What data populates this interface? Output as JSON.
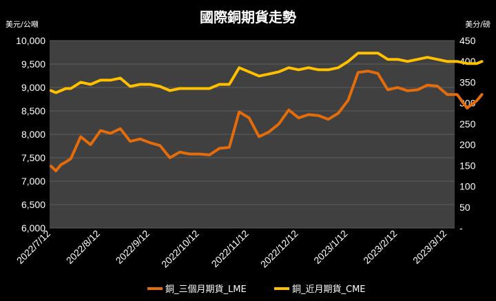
{
  "chart_data": {
    "type": "line",
    "title": "國際銅期貨走勢",
    "left_unit": "美元/公噸",
    "right_unit": "美分/磅",
    "ylim_left": [
      6000,
      10000
    ],
    "ylim_right": [
      0,
      450
    ],
    "yticks_left": [
      "6,000",
      "6,500",
      "7,000",
      "7,500",
      "8,000",
      "8,500",
      "9,000",
      "9,500",
      "10,000"
    ],
    "yticks_right": [
      "-",
      "50",
      "100",
      "150",
      "200",
      "250",
      "300",
      "350",
      "400",
      "450"
    ],
    "x_tick_labels": [
      "2022/7/12",
      "2022/8/12",
      "2022/9/12",
      "2022/10/12",
      "2022/11/12",
      "2022/12/12",
      "2023/1/12",
      "2023/2/12",
      "2023/3/12"
    ],
    "grid": "horizontal",
    "legend_position": "bottom",
    "plot_background": "#404040",
    "series": [
      {
        "name": "銅_三個月期貨_LME",
        "axis": "left",
        "color": "#E46C0A",
        "x_tick_index": [
          0,
          0.1,
          0.2,
          0.3,
          0.4,
          0.6,
          0.8,
          1.0,
          1.2,
          1.4,
          1.6,
          1.8,
          2.0,
          2.2,
          2.4,
          2.6,
          2.8,
          3.0,
          3.2,
          3.4,
          3.6,
          3.8,
          4.0,
          4.2,
          4.4,
          4.6,
          4.8,
          5.0,
          5.2,
          5.4,
          5.6,
          5.8,
          6.0,
          6.2,
          6.4,
          6.6,
          6.8,
          7.0,
          7.2,
          7.4,
          7.6,
          7.8,
          8.0,
          8.2,
          8.4,
          8.6,
          8.7
        ],
        "values": [
          7320,
          7220,
          7350,
          7410,
          7480,
          7950,
          7780,
          8080,
          8020,
          8120,
          7850,
          7900,
          7820,
          7760,
          7500,
          7620,
          7580,
          7580,
          7560,
          7700,
          7720,
          8480,
          8350,
          7950,
          8050,
          8220,
          8520,
          8350,
          8420,
          8400,
          8320,
          8450,
          8730,
          9320,
          9350,
          9300,
          8950,
          9000,
          8930,
          8950,
          9050,
          9030,
          8850,
          8850,
          8560,
          8720,
          8850
        ]
      },
      {
        "name": "銅_近月期貨_CME",
        "axis": "right",
        "color": "#FFC000",
        "x_tick_index": [
          0,
          0.1,
          0.2,
          0.3,
          0.4,
          0.6,
          0.8,
          1.0,
          1.2,
          1.4,
          1.6,
          1.8,
          2.0,
          2.2,
          2.4,
          2.6,
          2.8,
          3.0,
          3.2,
          3.4,
          3.6,
          3.8,
          4.0,
          4.2,
          4.4,
          4.6,
          4.8,
          5.0,
          5.2,
          5.4,
          5.6,
          5.8,
          6.0,
          6.2,
          6.4,
          6.6,
          6.8,
          7.0,
          7.2,
          7.4,
          7.6,
          7.8,
          8.0,
          8.2,
          8.4,
          8.6,
          8.7
        ],
        "values": [
          330,
          325,
          330,
          335,
          335,
          350,
          345,
          355,
          355,
          360,
          340,
          345,
          345,
          340,
          330,
          335,
          335,
          335,
          335,
          345,
          345,
          385,
          375,
          365,
          370,
          375,
          385,
          380,
          385,
          380,
          380,
          385,
          400,
          420,
          420,
          420,
          405,
          405,
          400,
          405,
          410,
          405,
          400,
          400,
          395,
          395,
          400
        ]
      }
    ]
  }
}
